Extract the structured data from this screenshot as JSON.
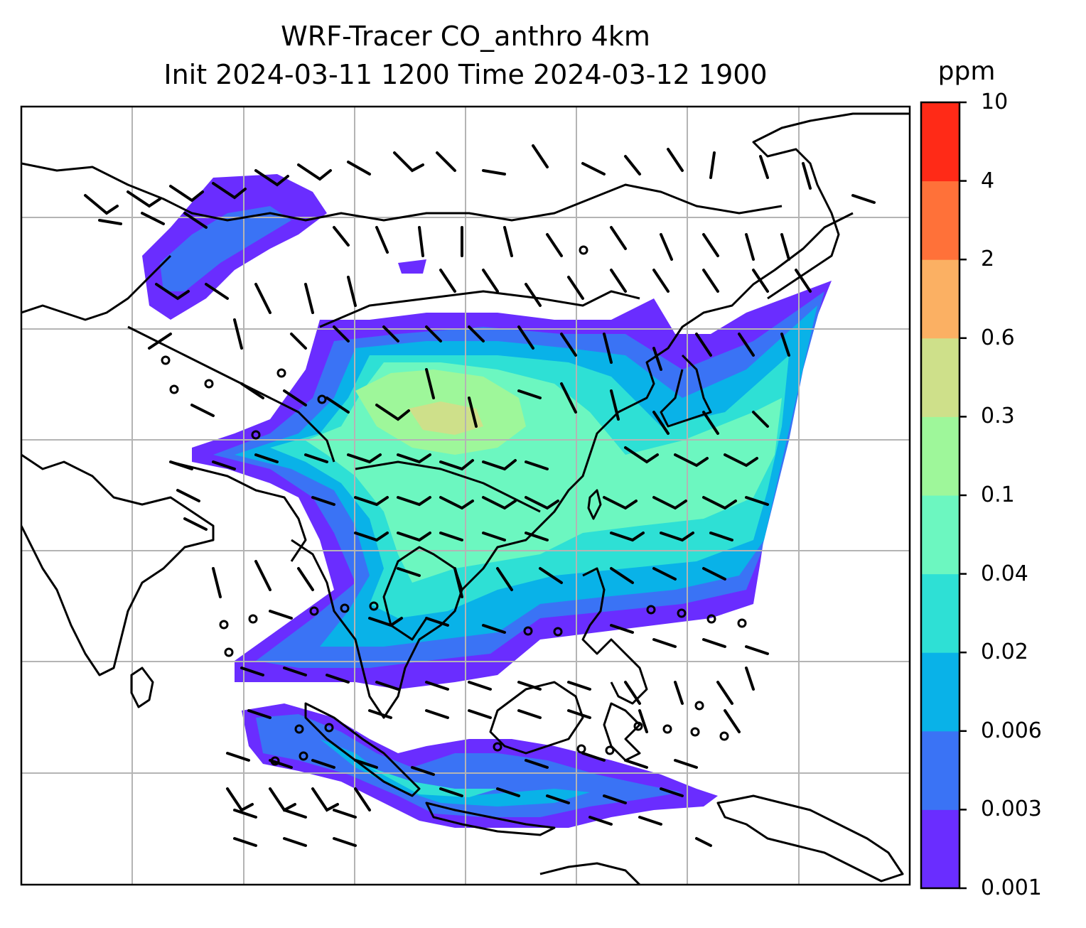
{
  "title": {
    "line1": "WRF-Tracer CO_anthro 4km",
    "line2": "Init 2024-03-11 1200 Time 2024-03-12 1900"
  },
  "colorbar": {
    "unit": "ppm",
    "levels": [
      "0.001",
      "0.003",
      "0.006",
      "0.02",
      "0.04",
      "0.1",
      "0.3",
      "0.6",
      "2",
      "4",
      "10"
    ],
    "colors": [
      "#6a2dff",
      "#3a73f5",
      "#09b2e8",
      "#2ee0d5",
      "#6cf7c0",
      "#9ef79a",
      "#cee08a",
      "#fbb063",
      "#ff7139",
      "#ff2a17"
    ]
  },
  "map": {
    "gridlines": true,
    "field": "CO_anthro",
    "wind_barbs": true
  }
}
